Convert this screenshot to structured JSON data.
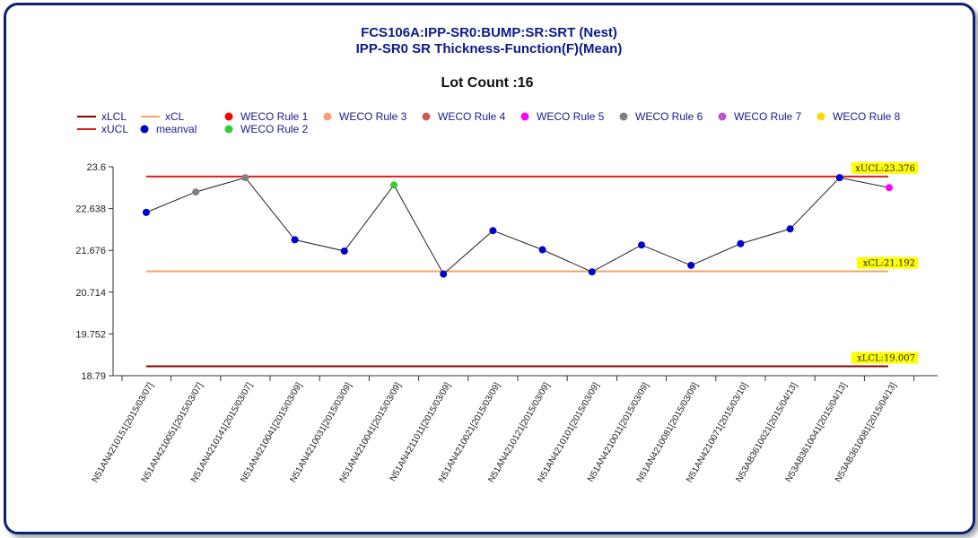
{
  "chart_data": {
    "type": "line",
    "title": "FCS106A:IPP-SR0:BUMP:SR:SRT (Nest)",
    "subtitle": "IPP-SR0 SR Thickness-Function(F)(Mean)",
    "lot_count_label": "Lot Count :16",
    "legend": [
      {
        "label": "xLCL",
        "kind": "line",
        "color": "#8b0000"
      },
      {
        "label": "xCL",
        "kind": "line",
        "color": "#f4a460"
      },
      {
        "label": "WECO Rule 1",
        "kind": "dot",
        "color": "#ff0000"
      },
      {
        "label": "WECO Rule 3",
        "kind": "dot",
        "color": "#f4a07a"
      },
      {
        "label": "WECO Rule 4",
        "kind": "dot",
        "color": "#cd5c5c"
      },
      {
        "label": "WECO Rule 5",
        "kind": "dot",
        "color": "#ff00ff"
      },
      {
        "label": "WECO Rule 6",
        "kind": "dot",
        "color": "#808080"
      },
      {
        "label": "WECO Rule 7",
        "kind": "dot",
        "color": "#ba55d3"
      },
      {
        "label": "WECO Rule 8",
        "kind": "dot",
        "color": "#ffd700"
      },
      {
        "label": "xUCL",
        "kind": "line",
        "color": "#e31a1c"
      },
      {
        "label": "meanval",
        "kind": "dot",
        "color": "#0000cd"
      },
      {
        "label": "WECO Rule 2",
        "kind": "dot",
        "color": "#32cd32"
      }
    ],
    "y_ticks": [
      "23.6",
      "22.638",
      "21.676",
      "20.714",
      "19.752",
      "18.79"
    ],
    "ylim": [
      18.79,
      23.6
    ],
    "categories": [
      "N51AN4210151[2015/03/07]",
      "N51AN4210051[2015/03/07]",
      "N51AN4210141[2015/03/07]",
      "N51AN4210041[2015/03/09]",
      "N51AN4210031[2015/03/09]",
      "N51AN4210041[2015/03/09]",
      "N51AN4211011[2015/03/09]",
      "N51AN4210021[2015/03/09]",
      "N51AN4210121[2015/03/09]",
      "N51AN4210101[2015/03/09]",
      "N51AN4210011[2015/03/09]",
      "N51AN4210081[2015/03/09]",
      "N51AN4210071[2015/03/10]",
      "N53AB3610021[2015/04/13]",
      "N53AB3610041[2015/04/13]",
      "N53AB3610081[2015/04/13]"
    ],
    "series": [
      {
        "name": "meanval",
        "color": "#222222",
        "values": [
          22.55,
          23.02,
          23.35,
          21.92,
          21.66,
          23.18,
          21.13,
          22.13,
          21.69,
          21.18,
          21.8,
          21.33,
          21.83,
          22.17,
          23.35,
          23.12
        ],
        "point_colors": [
          "#0000cd",
          "#808080",
          "#808080",
          "#0000cd",
          "#0000cd",
          "#32cd32",
          "#0000cd",
          "#0000cd",
          "#0000cd",
          "#0000cd",
          "#0000cd",
          "#0000cd",
          "#0000cd",
          "#0000cd",
          "#0000cd",
          "#ff00ff"
        ]
      }
    ],
    "limits": [
      {
        "name": "xUCL",
        "value": 23.376,
        "label": "xUCL:23.376",
        "color": "#e31a1c"
      },
      {
        "name": "xCL",
        "value": 21.192,
        "label": "xCL:21.192",
        "color": "#f4a460"
      },
      {
        "name": "xLCL",
        "value": 19.007,
        "label": "xLCL:19.007",
        "color": "#8b0000"
      }
    ],
    "grid": false
  }
}
